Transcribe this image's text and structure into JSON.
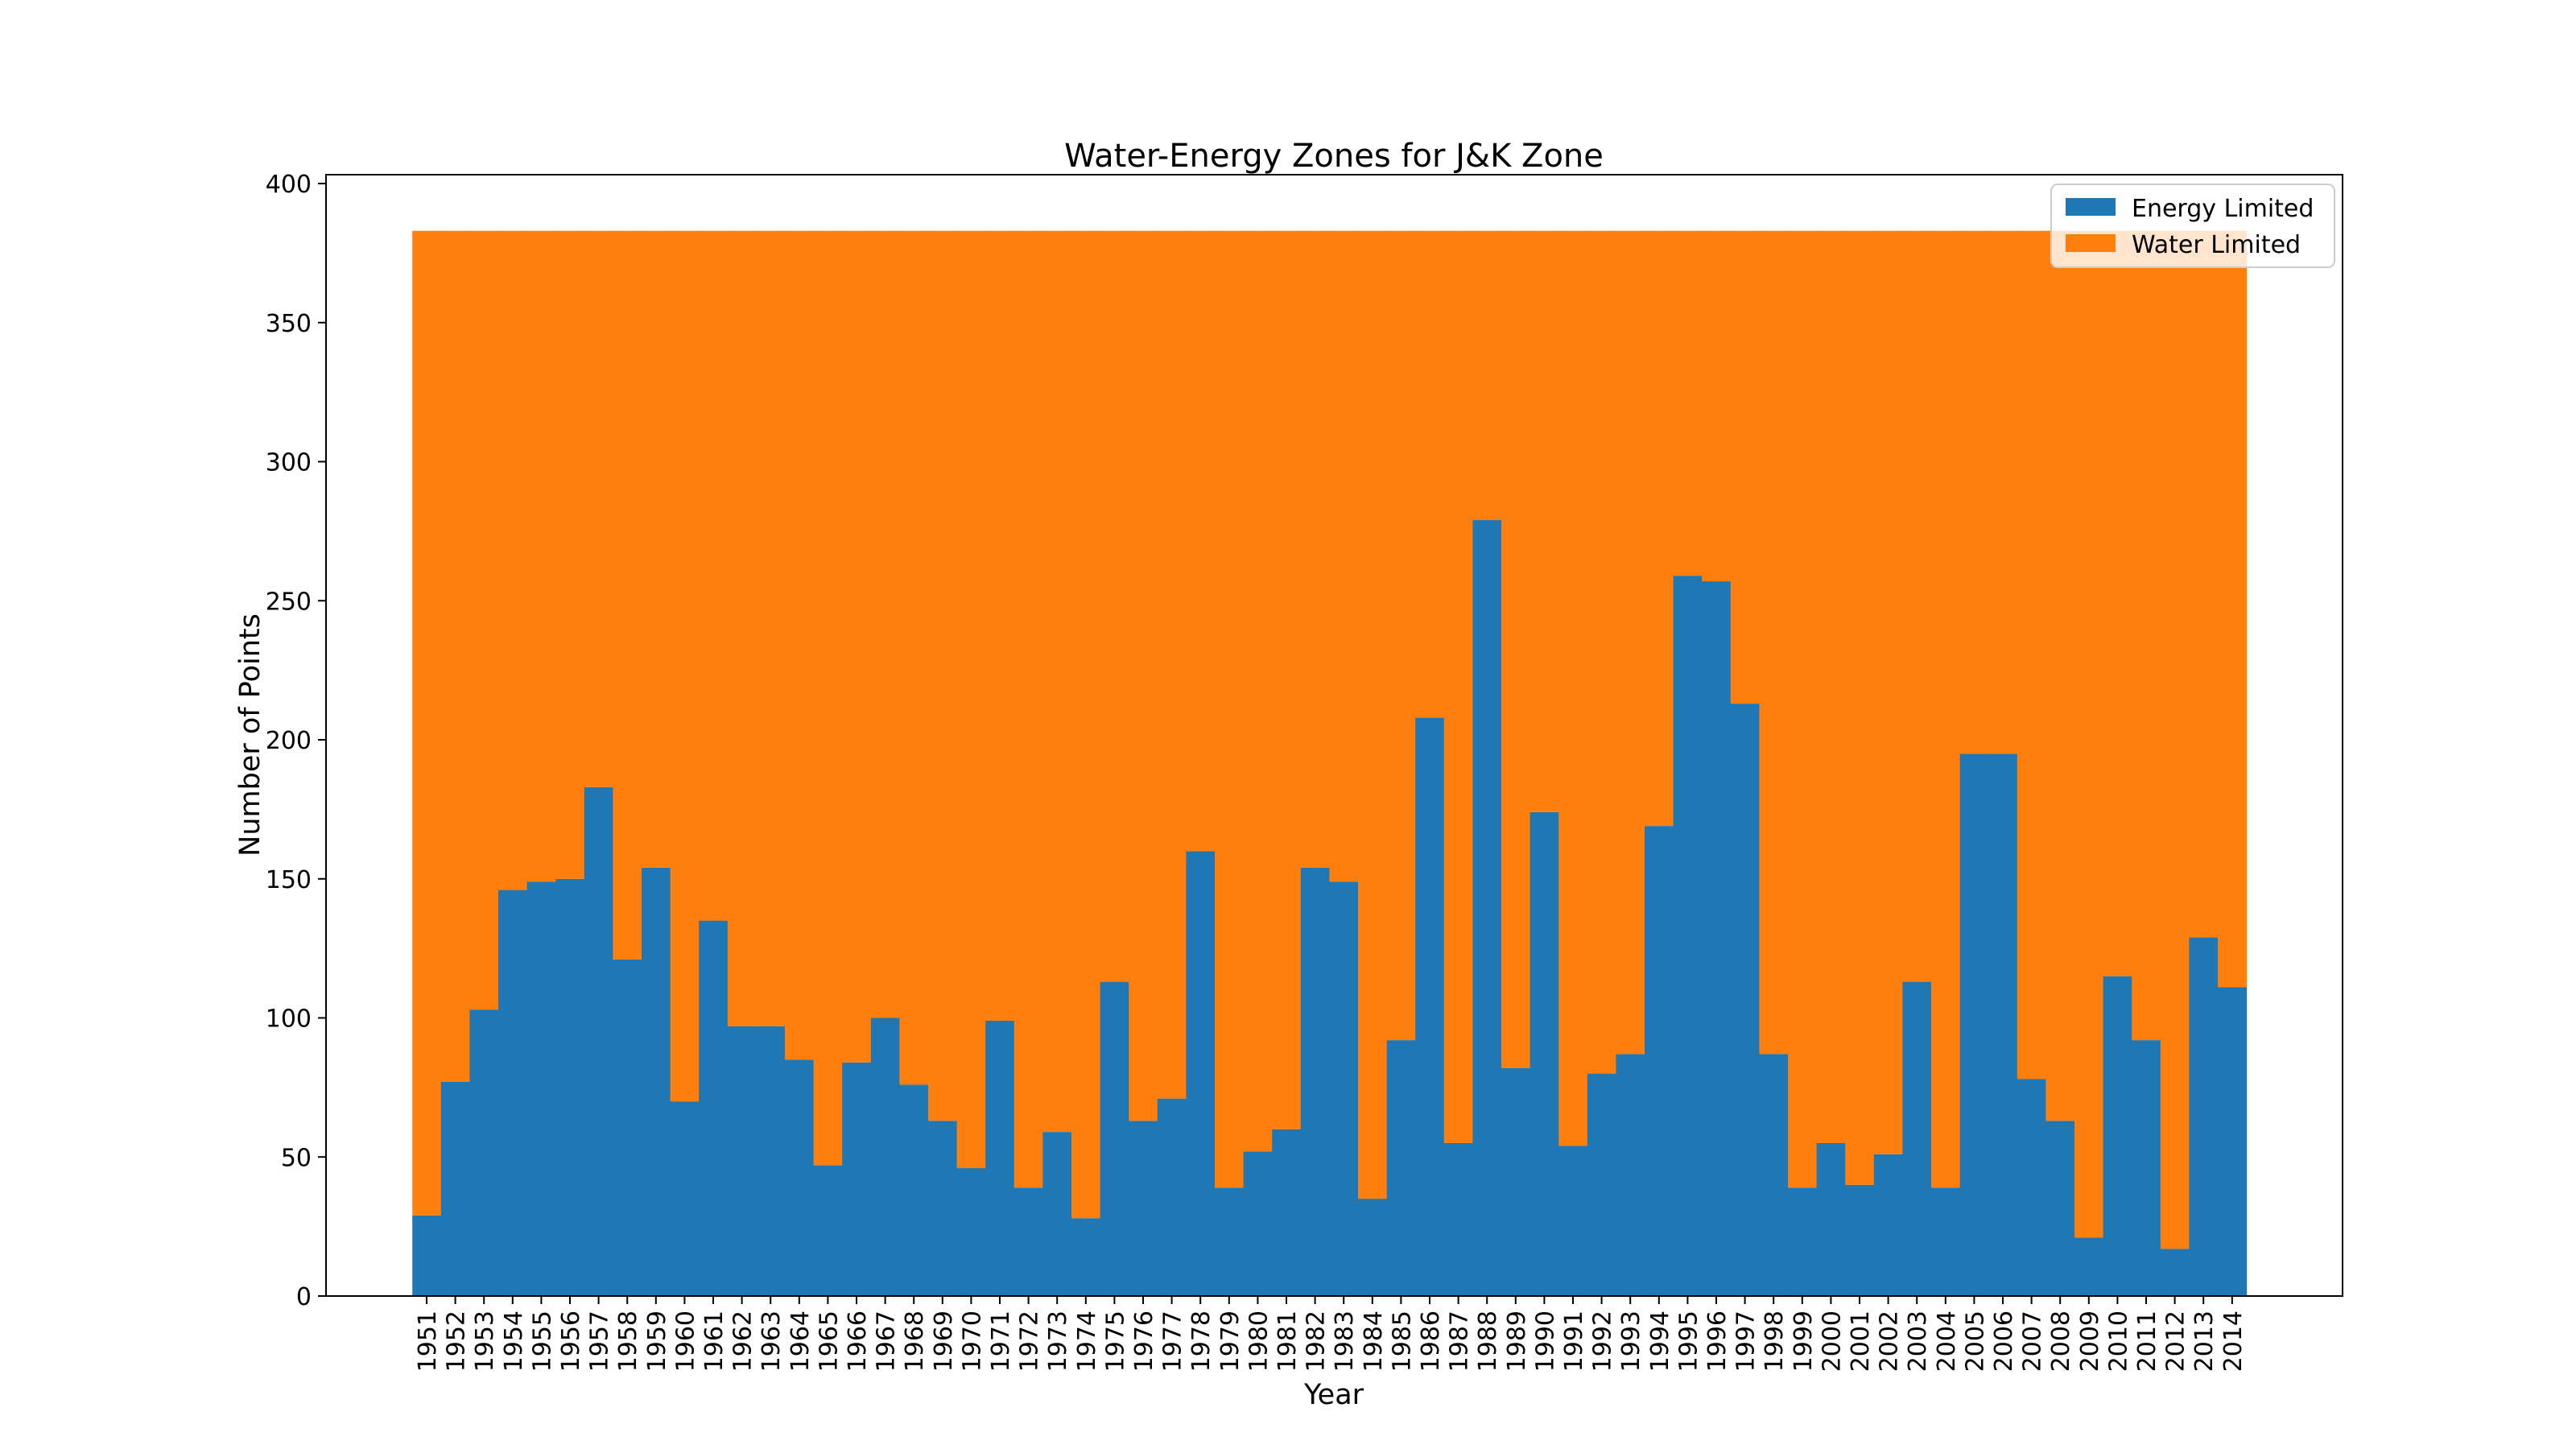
{
  "chart_data": {
    "type": "bar",
    "stacked": true,
    "title": "Water-Energy Zones for J&K Zone",
    "xlabel": "Year",
    "ylabel": "Number of Points",
    "ylim": [
      0,
      400
    ],
    "yticks": [
      0,
      50,
      100,
      150,
      200,
      250,
      300,
      350,
      400
    ],
    "grid": false,
    "legend_position": "top-right",
    "categories": [
      "1951",
      "1952",
      "1953",
      "1954",
      "1955",
      "1956",
      "1957",
      "1958",
      "1959",
      "1960",
      "1961",
      "1962",
      "1963",
      "1964",
      "1965",
      "1966",
      "1967",
      "1968",
      "1969",
      "1970",
      "1971",
      "1972",
      "1973",
      "1974",
      "1975",
      "1976",
      "1977",
      "1978",
      "1979",
      "1980",
      "1981",
      "1982",
      "1983",
      "1984",
      "1985",
      "1986",
      "1987",
      "1988",
      "1989",
      "1990",
      "1991",
      "1992",
      "1993",
      "1994",
      "1995",
      "1996",
      "1997",
      "1998",
      "1999",
      "2000",
      "2001",
      "2002",
      "2003",
      "2004",
      "2005",
      "2006",
      "2007",
      "2008",
      "2009",
      "2010",
      "2011",
      "2012",
      "2013",
      "2014"
    ],
    "series": [
      {
        "name": "Energy Limited",
        "color": "#1f77b4",
        "values": [
          29,
          77,
          103,
          146,
          149,
          150,
          183,
          121,
          154,
          70,
          135,
          97,
          97,
          85,
          47,
          84,
          100,
          76,
          63,
          46,
          99,
          39,
          59,
          28,
          113,
          63,
          71,
          160,
          39,
          52,
          60,
          154,
          149,
          35,
          92,
          208,
          55,
          279,
          82,
          174,
          54,
          80,
          87,
          169,
          259,
          257,
          213,
          87,
          39,
          55,
          40,
          51,
          113,
          39,
          195,
          195,
          78,
          63,
          21,
          115,
          92,
          17,
          129,
          111
        ]
      },
      {
        "name": "Water Limited",
        "color": "#ff7f0e",
        "values": [
          354,
          306,
          280,
          237,
          234,
          233,
          200,
          262,
          229,
          313,
          248,
          286,
          286,
          298,
          336,
          299,
          283,
          307,
          320,
          337,
          284,
          344,
          324,
          355,
          270,
          320,
          312,
          223,
          344,
          331,
          323,
          229,
          234,
          348,
          291,
          175,
          328,
          104,
          301,
          209,
          329,
          303,
          296,
          214,
          124,
          126,
          170,
          296,
          344,
          328,
          343,
          332,
          270,
          344,
          188,
          188,
          305,
          320,
          362,
          268,
          291,
          366,
          254,
          272
        ]
      }
    ]
  }
}
